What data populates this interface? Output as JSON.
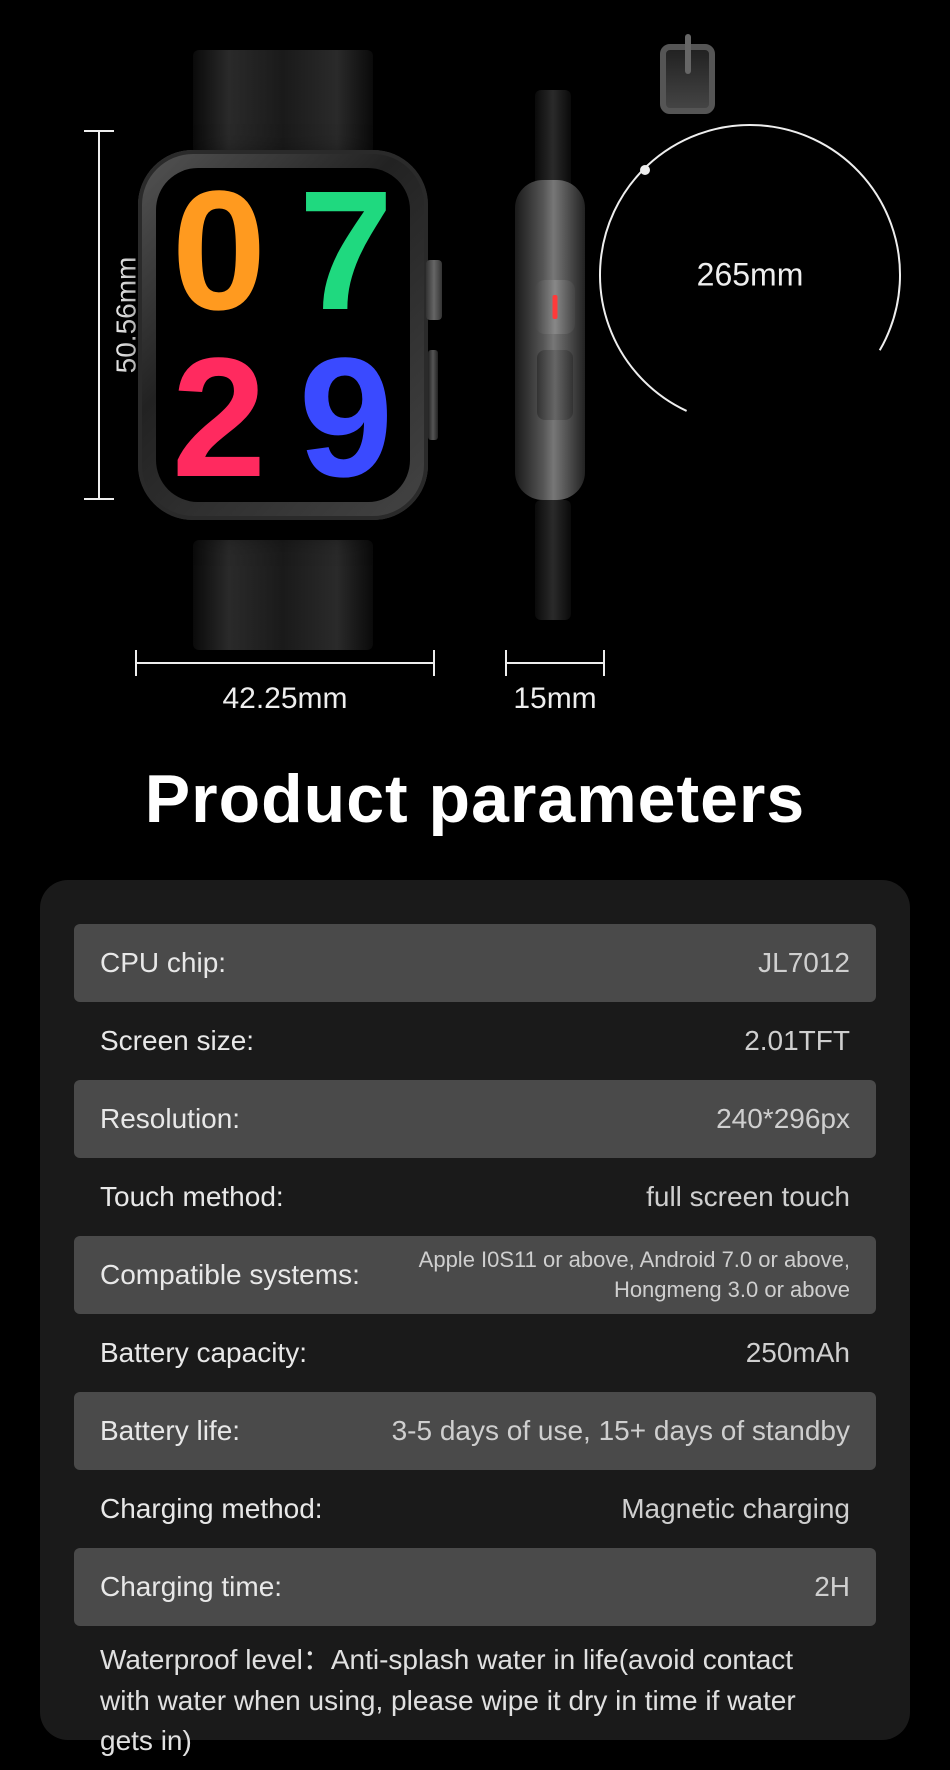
{
  "dimensions": {
    "height_label": "50.56mm",
    "width_label": "42.25mm",
    "thickness_label": "15mm",
    "circumference_label": "265mm"
  },
  "watchface": {
    "d0": "0",
    "d7": "7",
    "d2": "2",
    "d9": "9",
    "colors": {
      "d0": "#ff9a1f",
      "d7": "#1fd97f",
      "d2": "#ff2a5f",
      "d9": "#3a4aff"
    }
  },
  "title": "Product parameters",
  "specs": [
    {
      "label": "CPU chip:",
      "value": "JL7012",
      "alt": true
    },
    {
      "label": "Screen size:",
      "value": "2.01TFT",
      "alt": false
    },
    {
      "label": "Resolution:",
      "value": "240*296px",
      "alt": true
    },
    {
      "label": "Touch method:",
      "value": "full screen touch",
      "alt": false
    },
    {
      "label": "Compatible systems:",
      "value": "Apple I0S11 or above, Android 7.0 or above,\nHongmeng 3.0 or above",
      "alt": true,
      "small": true
    },
    {
      "label": "Battery capacity:",
      "value": "250mAh",
      "alt": false
    },
    {
      "label": "Battery life:",
      "value": "3-5 days of use, 15+ days of standby",
      "alt": true
    },
    {
      "label": "Charging method:",
      "value": "Magnetic charging",
      "alt": false
    },
    {
      "label": "Charging time:",
      "value": "2H",
      "alt": true
    }
  ],
  "footnote": "Waterproof level：Anti-splash water in life(avoid contact with water when using, please wipe it dry in time if water gets in)",
  "style": {
    "bg": "#000000",
    "panel_bg": "#1a1a1a",
    "row_alt_bg": "#4a4a4a",
    "text_primary": "#e8e8e8",
    "text_secondary": "#cfcfcf",
    "dim_line": "#eeeeee",
    "title_fontsize": 68,
    "row_fontsize": 28,
    "small_fontsize": 22
  }
}
